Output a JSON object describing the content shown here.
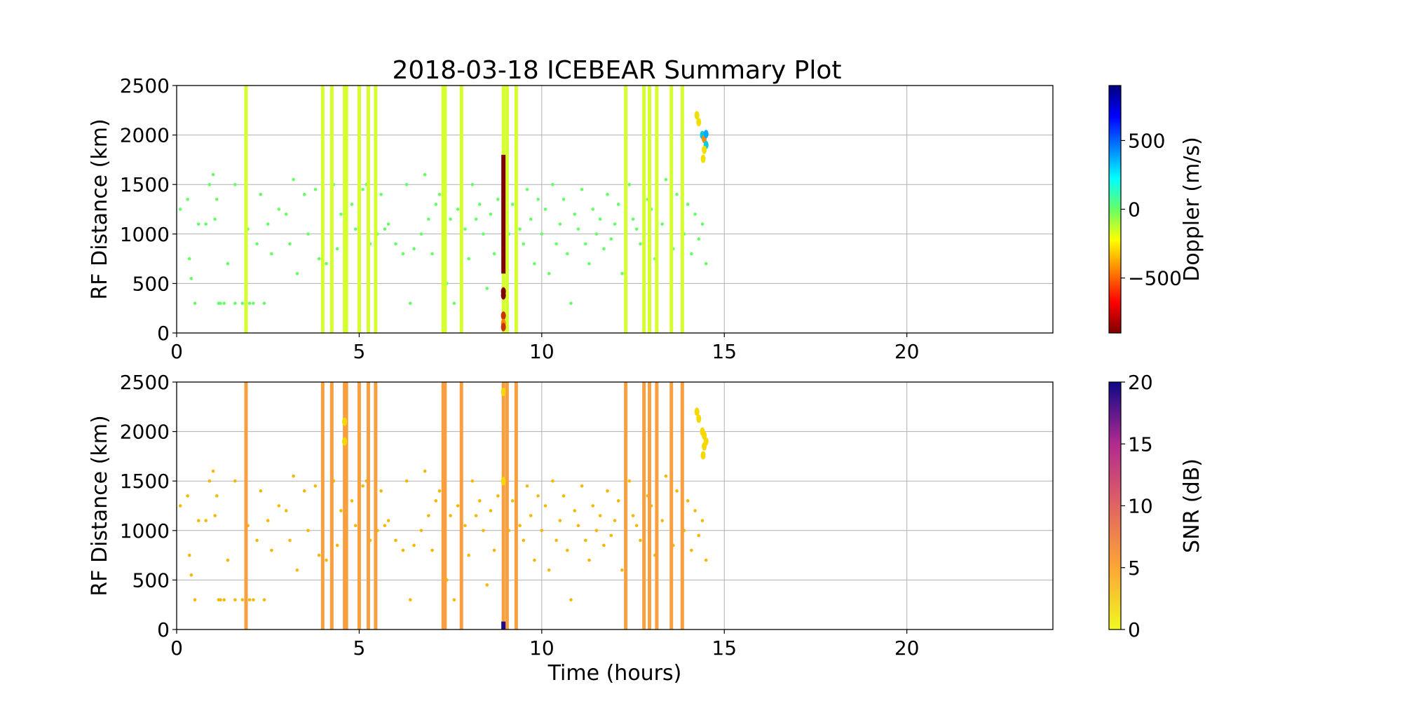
{
  "figure": {
    "title": "2018-03-18 ICEBEAR Summary Plot"
  },
  "chart_data": [
    {
      "type": "scatter",
      "panel": "top",
      "xlabel": "",
      "ylabel": "RF Distance (km)",
      "xlim": [
        0,
        24
      ],
      "ylim": [
        0,
        2500
      ],
      "xticks": [
        0,
        5,
        10,
        15,
        20
      ],
      "yticks": [
        0,
        500,
        1000,
        1500,
        2000,
        2500
      ],
      "grid": true,
      "colorbar": {
        "label": "Doppler (m/s)",
        "colormap": "jet",
        "range": [
          -900,
          900
        ],
        "ticks": [
          -500,
          0,
          500
        ],
        "tick_labels": [
          "−500",
          "0",
          "500"
        ]
      },
      "vertical_bands": {
        "x": [
          1.9,
          4.0,
          4.25,
          4.6,
          4.65,
          5.0,
          5.25,
          5.45,
          7.3,
          7.35,
          7.8,
          8.95,
          9.05,
          9.3,
          12.3,
          12.8,
          12.95,
          13.15,
          13.55,
          13.85
        ],
        "y_range": [
          0,
          2500
        ],
        "color": "#d6ff2e"
      },
      "dark_spike": {
        "x": 8.95,
        "y_range": [
          600,
          1800
        ],
        "color": "#800000"
      },
      "special_points": [
        {
          "x": 8.95,
          "y": 380,
          "color": "#800000"
        },
        {
          "x": 8.95,
          "y": 420,
          "color": "#800000"
        },
        {
          "x": 8.95,
          "y": 175,
          "color": "#cc3300"
        },
        {
          "x": 8.95,
          "y": 100,
          "color": "#ff8800"
        },
        {
          "x": 8.95,
          "y": 60,
          "color": "#cc3300"
        },
        {
          "x": 14.25,
          "y": 2200,
          "color": "#f0e000"
        },
        {
          "x": 14.3,
          "y": 2130,
          "color": "#f0e000"
        },
        {
          "x": 14.4,
          "y": 2000,
          "color": "#00ccdd"
        },
        {
          "x": 14.45,
          "y": 1960,
          "color": "#ff8800"
        },
        {
          "x": 14.5,
          "y": 2010,
          "color": "#00aaff"
        },
        {
          "x": 14.5,
          "y": 1900,
          "color": "#00ccdd"
        },
        {
          "x": 14.45,
          "y": 1850,
          "color": "#f0e000"
        },
        {
          "x": 14.42,
          "y": 1760,
          "color": "#f0e000"
        }
      ],
      "scatter_color": "#66ff66"
    },
    {
      "type": "scatter",
      "panel": "bottom",
      "xlabel": "Time (hours)",
      "ylabel": "RF Distance (km)",
      "xlim": [
        0,
        24
      ],
      "ylim": [
        0,
        2500
      ],
      "xticks": [
        0,
        5,
        10,
        15,
        20
      ],
      "yticks": [
        0,
        500,
        1000,
        1500,
        2000,
        2500
      ],
      "grid": true,
      "colorbar": {
        "label": "SNR (dB)",
        "colormap": "plasma_r",
        "range": [
          0,
          20
        ],
        "ticks": [
          0,
          5,
          10,
          15,
          20
        ],
        "tick_labels": [
          "0",
          "5",
          "10",
          "15",
          "20"
        ]
      },
      "vertical_bands": {
        "x": [
          1.9,
          4.0,
          4.25,
          4.6,
          4.65,
          5.0,
          5.25,
          5.45,
          7.3,
          7.35,
          7.8,
          8.95,
          9.05,
          9.3,
          12.3,
          12.8,
          12.95,
          13.15,
          13.55,
          13.85
        ],
        "y_range": [
          0,
          2500
        ],
        "color": "#f8a040"
      },
      "dark_spike": {
        "x": 8.95,
        "y_range": [
          0,
          80
        ],
        "color": "#1a0a8c"
      },
      "special_points": [
        {
          "x": 14.25,
          "y": 2200,
          "color": "#f5d800"
        },
        {
          "x": 14.3,
          "y": 2130,
          "color": "#f5d800"
        },
        {
          "x": 14.4,
          "y": 2000,
          "color": "#f5d800"
        },
        {
          "x": 14.45,
          "y": 1960,
          "color": "#f5d800"
        },
        {
          "x": 14.5,
          "y": 1900,
          "color": "#f5d800"
        },
        {
          "x": 14.45,
          "y": 1850,
          "color": "#f5d800"
        },
        {
          "x": 14.42,
          "y": 1760,
          "color": "#f5d800"
        },
        {
          "x": 4.6,
          "y": 2100,
          "color": "#f5d800"
        },
        {
          "x": 4.6,
          "y": 1900,
          "color": "#f5d800"
        },
        {
          "x": 8.95,
          "y": 2400,
          "color": "#f5d800"
        },
        {
          "x": 8.95,
          "y": 1500,
          "color": "#f5d800"
        }
      ],
      "scatter_color": "#f5b800"
    }
  ],
  "scatter_samples": [
    [
      0.1,
      1250
    ],
    [
      0.3,
      1350
    ],
    [
      0.35,
      750
    ],
    [
      0.4,
      550
    ],
    [
      0.5,
      300
    ],
    [
      0.6,
      1100
    ],
    [
      0.8,
      1100
    ],
    [
      0.9,
      1500
    ],
    [
      1.0,
      1600
    ],
    [
      1.05,
      1150
    ],
    [
      1.1,
      1350
    ],
    [
      1.15,
      300
    ],
    [
      1.2,
      300
    ],
    [
      1.3,
      300
    ],
    [
      1.4,
      700
    ],
    [
      1.6,
      300
    ],
    [
      1.6,
      1500
    ],
    [
      1.8,
      300
    ],
    [
      1.9,
      1000
    ],
    [
      1.95,
      1050
    ],
    [
      2.0,
      300
    ],
    [
      2.1,
      300
    ],
    [
      2.2,
      900
    ],
    [
      2.3,
      1400
    ],
    [
      2.4,
      300
    ],
    [
      2.5,
      1100
    ],
    [
      2.6,
      800
    ],
    [
      2.8,
      1250
    ],
    [
      3.0,
      1200
    ],
    [
      3.1,
      900
    ],
    [
      3.2,
      1550
    ],
    [
      3.3,
      600
    ],
    [
      3.5,
      1400
    ],
    [
      3.6,
      1000
    ],
    [
      3.8,
      1450
    ],
    [
      3.9,
      750
    ],
    [
      4.1,
      700
    ],
    [
      4.3,
      1500
    ],
    [
      4.4,
      850
    ],
    [
      4.5,
      1200
    ],
    [
      4.8,
      1300
    ],
    [
      4.9,
      1050
    ],
    [
      5.1,
      1450
    ],
    [
      5.2,
      1500
    ],
    [
      5.3,
      900
    ],
    [
      5.5,
      1000
    ],
    [
      5.6,
      1400
    ],
    [
      5.7,
      1050
    ],
    [
      5.8,
      1100
    ],
    [
      6.0,
      900
    ],
    [
      6.2,
      800
    ],
    [
      6.3,
      1500
    ],
    [
      6.4,
      300
    ],
    [
      6.5,
      850
    ],
    [
      6.7,
      1000
    ],
    [
      6.8,
      1600
    ],
    [
      6.9,
      1150
    ],
    [
      7.0,
      800
    ],
    [
      7.1,
      1300
    ],
    [
      7.2,
      1400
    ],
    [
      7.4,
      500
    ],
    [
      7.5,
      1150
    ],
    [
      7.6,
      300
    ],
    [
      7.7,
      1250
    ],
    [
      7.8,
      1550
    ],
    [
      7.9,
      1050
    ],
    [
      8.0,
      750
    ],
    [
      8.1,
      1500
    ],
    [
      8.2,
      1150
    ],
    [
      8.3,
      1300
    ],
    [
      8.4,
      1000
    ],
    [
      8.5,
      450
    ],
    [
      8.6,
      1200
    ],
    [
      8.7,
      800
    ],
    [
      8.8,
      1350
    ],
    [
      9.1,
      1000
    ],
    [
      9.2,
      1300
    ],
    [
      9.3,
      1700
    ],
    [
      9.4,
      1050
    ],
    [
      9.5,
      900
    ],
    [
      9.6,
      1450
    ],
    [
      9.7,
      1150
    ],
    [
      9.8,
      700
    ],
    [
      9.9,
      1350
    ],
    [
      10.0,
      1000
    ],
    [
      10.1,
      1250
    ],
    [
      10.2,
      600
    ],
    [
      10.3,
      1500
    ],
    [
      10.4,
      900
    ],
    [
      10.5,
      1100
    ],
    [
      10.6,
      1350
    ],
    [
      10.7,
      800
    ],
    [
      10.8,
      300
    ],
    [
      10.9,
      1200
    ],
    [
      11.0,
      1050
    ],
    [
      11.1,
      1450
    ],
    [
      11.2,
      900
    ],
    [
      11.3,
      700
    ],
    [
      11.4,
      1250
    ],
    [
      11.5,
      1000
    ],
    [
      11.6,
      1150
    ],
    [
      11.7,
      850
    ],
    [
      11.8,
      1400
    ],
    [
      11.9,
      950
    ],
    [
      12.0,
      1100
    ],
    [
      12.1,
      1300
    ],
    [
      12.2,
      600
    ],
    [
      12.4,
      1500
    ],
    [
      12.5,
      1150
    ],
    [
      12.6,
      1050
    ],
    [
      12.7,
      900
    ],
    [
      12.9,
      1350
    ],
    [
      13.0,
      1250
    ],
    [
      13.1,
      750
    ],
    [
      13.3,
      1100
    ],
    [
      13.4,
      1550
    ],
    [
      13.6,
      850
    ],
    [
      13.7,
      1400
    ],
    [
      13.9,
      1000
    ],
    [
      14.0,
      1300
    ],
    [
      14.1,
      800
    ],
    [
      14.2,
      1200
    ],
    [
      14.3,
      950
    ],
    [
      14.4,
      1100
    ],
    [
      14.5,
      700
    ]
  ]
}
